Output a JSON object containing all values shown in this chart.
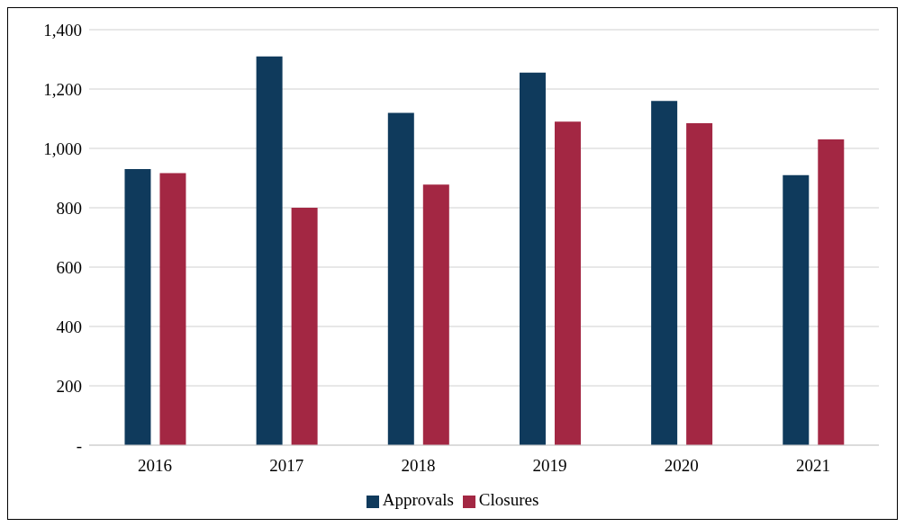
{
  "chart_data": {
    "type": "bar",
    "categories": [
      "2016",
      "2017",
      "2018",
      "2019",
      "2020",
      "2021"
    ],
    "series": [
      {
        "name": "Approvals",
        "color": "#0f3a5c",
        "values": [
          930,
          1310,
          1120,
          1255,
          1160,
          910
        ]
      },
      {
        "name": "Closures",
        "color": "#a32743",
        "values": [
          917,
          800,
          878,
          1090,
          1085,
          1030
        ]
      }
    ],
    "ylim": [
      0,
      1400
    ],
    "yticks": [
      {
        "value": 0,
        "label": "-"
      },
      200,
      400,
      600,
      800,
      {
        "value": 1000,
        "label": "1,000"
      },
      {
        "value": 1200,
        "label": "1,200"
      },
      {
        "value": 1400,
        "label": "1,400"
      }
    ],
    "grid": "y",
    "legend": "bottom"
  }
}
